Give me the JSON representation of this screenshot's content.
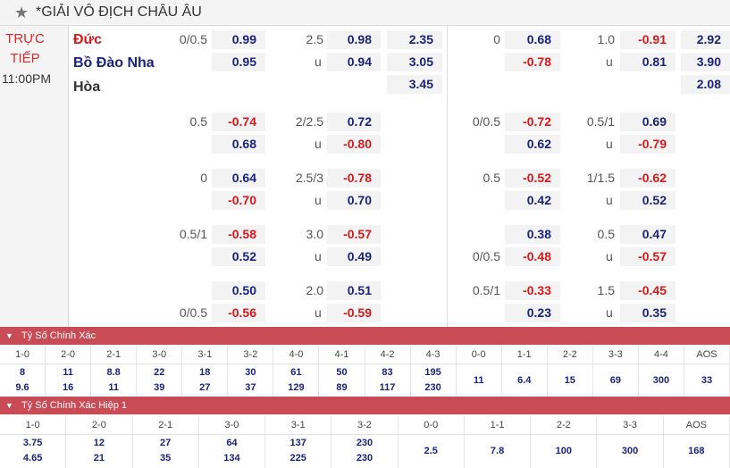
{
  "header": {
    "star_icon": "star-icon",
    "title": "*GIẢI VÔ ĐỊCH CHÂU ÂU"
  },
  "match": {
    "status_line1": "TRỰC",
    "status_line2": "TIẾP",
    "time": "11:00PM",
    "team_home": "Đức",
    "team_away": "Bồ Đào Nha",
    "draw": "Hòa"
  },
  "colors": {
    "negative": "#d7191c",
    "positive": "#1a237e",
    "section_bar": "#c94b56",
    "live": "#d72c2c"
  },
  "odds_rows": [
    {
      "hcap": "0/0.5",
      "hcap_home": "0.99",
      "hcap_away": "0.95",
      "ou": "2.5",
      "ou_over": "0.98",
      "ou_u": "u",
      "ou_under": "0.94",
      "x1": "2.35",
      "x2": "3.05",
      "x3": "3.45",
      "h1_hcap": "0",
      "h1_home": "0.68",
      "h1_away": "-0.78",
      "h1_ou": "1.0",
      "h1_over": "-0.91",
      "h1_u": "u",
      "h1_under": "0.81",
      "h1_x1": "2.92",
      "h1_x2": "3.90",
      "h1_x3": "2.08"
    },
    {
      "hcap": "0.5",
      "hcap_home": "-0.74",
      "hcap_away": "0.68",
      "ou": "2/2.5",
      "ou_over": "0.72",
      "ou_u": "u",
      "ou_under": "-0.80",
      "h1_hcap": "0/0.5",
      "h1_home": "-0.72",
      "h1_away": "0.62",
      "h1_ou": "0.5/1",
      "h1_over": "0.69",
      "h1_u": "u",
      "h1_under": "-0.79"
    },
    {
      "hcap": "0",
      "hcap_home": "0.64",
      "hcap_away": "-0.70",
      "ou": "2.5/3",
      "ou_over": "-0.78",
      "ou_u": "u",
      "ou_under": "0.70",
      "h1_hcap": "0.5",
      "h1_home": "-0.52",
      "h1_away": "0.42",
      "h1_ou": "1/1.5",
      "h1_over": "-0.62",
      "h1_u": "u",
      "h1_under": "0.52"
    },
    {
      "hcap": "0.5/1",
      "hcap_home": "-0.58",
      "hcap_away": "0.52",
      "ou": "3.0",
      "ou_over": "-0.57",
      "ou_u": "u",
      "ou_under": "0.49",
      "h1_hcap_away": "0/0.5",
      "h1_home": "0.38",
      "h1_away": "-0.48",
      "h1_ou": "0.5",
      "h1_over": "0.47",
      "h1_u": "u",
      "h1_under": "-0.57"
    },
    {
      "hcap_away_line": "0/0.5",
      "hcap_home": "0.50",
      "hcap_away": "-0.56",
      "ou": "2.0",
      "ou_over": "0.51",
      "ou_u": "u",
      "ou_under": "-0.59",
      "h1_hcap": "0.5/1",
      "h1_home": "-0.33",
      "h1_away": "0.23",
      "h1_ou": "1.5",
      "h1_over": "-0.45",
      "h1_u": "u",
      "h1_under": "0.35"
    }
  ],
  "correct_score": {
    "title": "Tỷ Số Chính Xác",
    "chevron_icon": "chevron-down-icon",
    "cols": [
      {
        "label": "1-0",
        "v1": "8",
        "v2": "9.6"
      },
      {
        "label": "2-0",
        "v1": "11",
        "v2": "16"
      },
      {
        "label": "2-1",
        "v1": "8.8",
        "v2": "11"
      },
      {
        "label": "3-0",
        "v1": "22",
        "v2": "39"
      },
      {
        "label": "3-1",
        "v1": "18",
        "v2": "27"
      },
      {
        "label": "3-2",
        "v1": "30",
        "v2": "37"
      },
      {
        "label": "4-0",
        "v1": "61",
        "v2": "129"
      },
      {
        "label": "4-1",
        "v1": "50",
        "v2": "89"
      },
      {
        "label": "4-2",
        "v1": "83",
        "v2": "117"
      },
      {
        "label": "4-3",
        "v1": "195",
        "v2": "230"
      },
      {
        "label": "0-0",
        "v1": "11"
      },
      {
        "label": "1-1",
        "v1": "6.4"
      },
      {
        "label": "2-2",
        "v1": "15"
      },
      {
        "label": "3-3",
        "v1": "69"
      },
      {
        "label": "4-4",
        "v1": "300"
      },
      {
        "label": "AOS",
        "v1": "33"
      }
    ]
  },
  "correct_score_h1": {
    "title": "Tỷ Số Chính Xác Hiệp 1",
    "chevron_icon": "chevron-down-icon",
    "cols": [
      {
        "label": "1-0",
        "v1": "3.75",
        "v2": "4.65"
      },
      {
        "label": "2-0",
        "v1": "12",
        "v2": "21"
      },
      {
        "label": "2-1",
        "v1": "27",
        "v2": "35"
      },
      {
        "label": "3-0",
        "v1": "64",
        "v2": "134"
      },
      {
        "label": "3-1",
        "v1": "137",
        "v2": "225"
      },
      {
        "label": "3-2",
        "v1": "230",
        "v2": "230"
      },
      {
        "label": "0-0",
        "v1": "2.5"
      },
      {
        "label": "1-1",
        "v1": "7.8"
      },
      {
        "label": "2-2",
        "v1": "100"
      },
      {
        "label": "3-3",
        "v1": "300"
      },
      {
        "label": "AOS",
        "v1": "168"
      }
    ]
  }
}
